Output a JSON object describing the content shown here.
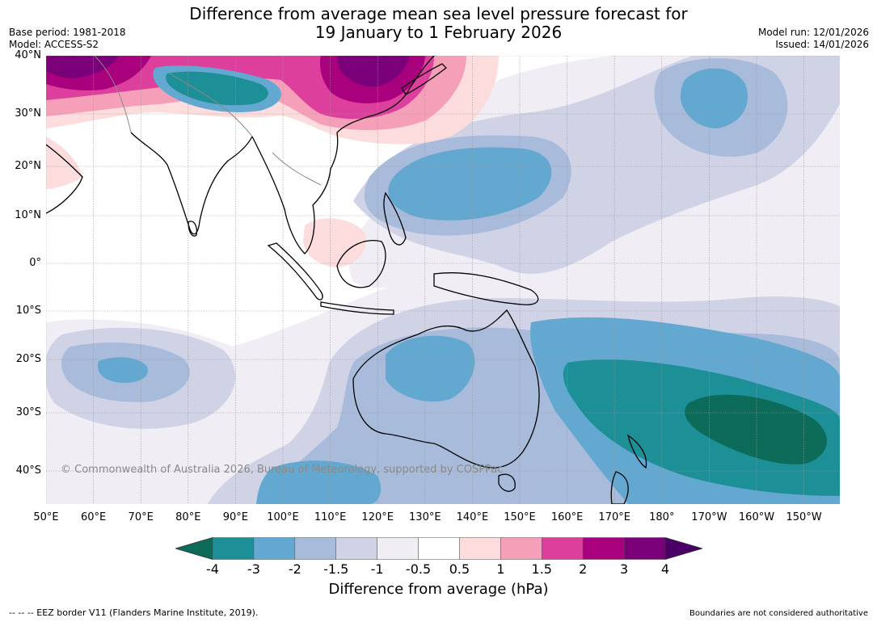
{
  "header": {
    "title_line1": "Difference from average mean sea level pressure forecast for",
    "title_line2": "19 January to 1 February 2026",
    "base_period": "Base period: 1981-2018",
    "model": "Model: ACCESS-S2",
    "model_run": "Model run: 12/01/2026",
    "issued": "Issued: 14/01/2026"
  },
  "map": {
    "lat_labels": [
      "40°N",
      "30°N",
      "20°N",
      "10°N",
      "0°",
      "10°S",
      "20°S",
      "30°S",
      "40°S"
    ],
    "lon_labels": [
      "50°E",
      "60°E",
      "70°E",
      "80°E",
      "90°E",
      "100°E",
      "110°E",
      "120°E",
      "130°E",
      "140°E",
      "150°E",
      "160°E",
      "170°E",
      "180°",
      "170°W",
      "160°W",
      "150°W"
    ],
    "credit": "© Commonwealth of Australia 2026, Bureau of Meteorology, supported by COSPPac"
  },
  "colorbar": {
    "tick_labels": [
      "-4",
      "-3",
      "-2",
      "-1.5",
      "-1",
      "-0.5",
      "0.5",
      "1",
      "1.5",
      "2",
      "3",
      "4"
    ],
    "colors": [
      "#0d6b5a",
      "#1d8f96",
      "#63a8d0",
      "#a8bbda",
      "#d0d3e6",
      "#f1edf5",
      "#ffffff",
      "#fcdcdc",
      "#f5a0b8",
      "#dd3f9c",
      "#a9007d",
      "#790078",
      "#4a0066"
    ],
    "title": "Difference from average (hPa)"
  },
  "footer": {
    "eez_note": "--  --  -- EEZ border V11 (Flanders Marine Institute, 2019).",
    "boundaries_note": "Boundaries are not considered authoritative"
  }
}
